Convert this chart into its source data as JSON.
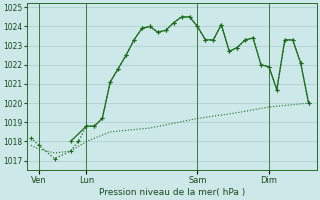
{
  "xlabel": "Pression niveau de la mer( hPa )",
  "bg_color": "#cce8e8",
  "grid_color": "#aacccc",
  "line_color": "#1a6b1a",
  "ylim": [
    1016.5,
    1025.2
  ],
  "xlim": [
    -0.5,
    36
  ],
  "day_labels": [
    "Ven",
    "Lun",
    "Sam",
    "Dim"
  ],
  "day_positions": [
    1,
    7,
    21,
    30
  ],
  "yticks": [
    1017,
    1018,
    1019,
    1020,
    1021,
    1022,
    1023,
    1024
  ],
  "ytick_fontsize": 5.5,
  "xtick_fontsize": 6.0,
  "xlabel_fontsize": 6.5,
  "line1_x": [
    0,
    1,
    3,
    5,
    6,
    7,
    8,
    9,
    10,
    11,
    12,
    13,
    14,
    15,
    16,
    17,
    18,
    19,
    20,
    21,
    22,
    23,
    24,
    25,
    26,
    27,
    28,
    29,
    30,
    31,
    32,
    33,
    34,
    35
  ],
  "line1_y": [
    1018.2,
    1017.8,
    1017.1,
    1017.5,
    1018.0,
    1018.8,
    1018.8,
    1019.2,
    1021.1,
    1021.8,
    1022.5,
    1023.3,
    1023.9,
    1024.0,
    1023.7,
    1023.8,
    1024.2,
    1024.5,
    1024.5,
    1024.0,
    1023.3,
    1023.3,
    1024.1,
    1022.7,
    1022.9,
    1023.3,
    1023.4,
    1022.0,
    1021.9,
    1020.7,
    1023.3,
    1023.3,
    1022.1,
    1020.0
  ],
  "line1_style": "-",
  "line1_marker": "+",
  "line1_lw": 0.9,
  "line2_x": [
    0,
    1,
    3,
    5,
    7,
    10,
    15,
    21,
    26,
    30,
    35
  ],
  "line2_y": [
    1017.8,
    1017.6,
    1017.4,
    1017.5,
    1018.0,
    1018.5,
    1018.7,
    1019.2,
    1019.5,
    1019.8,
    1020.0
  ],
  "line2_style": "-",
  "line2_marker": "None",
  "line2_lw": 0.8,
  "line3_x": [
    5,
    7,
    8,
    9,
    10,
    11,
    12,
    13,
    14,
    15,
    16,
    17,
    18,
    19,
    20,
    21,
    22,
    23,
    24,
    25,
    26,
    27,
    28,
    29,
    30,
    31,
    32,
    33,
    34,
    35
  ],
  "line3_y": [
    1018.0,
    1018.8,
    1018.8,
    1019.2,
    1021.1,
    1021.8,
    1022.5,
    1023.3,
    1023.9,
    1024.0,
    1023.7,
    1023.8,
    1024.2,
    1024.5,
    1024.5,
    1024.0,
    1023.3,
    1023.3,
    1024.1,
    1022.7,
    1022.9,
    1023.3,
    1023.4,
    1022.0,
    1021.9,
    1020.7,
    1023.3,
    1023.3,
    1022.1,
    1020.0
  ],
  "line3_style": "-",
  "line3_marker": "+",
  "line3_lw": 0.9
}
